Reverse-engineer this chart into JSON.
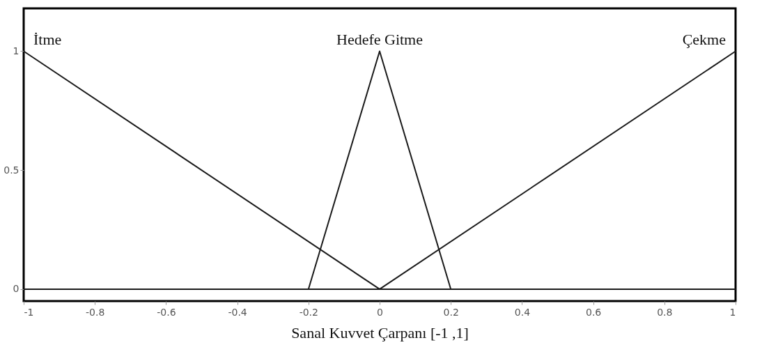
{
  "chart_data": {
    "type": "line",
    "xlabel": "Sanal Kuvvet Çarpanı [-1 ,1]",
    "series": [
      {
        "name": "İtme",
        "color": "#1a1a1a",
        "x": [
          -1,
          0,
          1
        ],
        "values": [
          1,
          0,
          0
        ]
      },
      {
        "name": "Hedefe Gitme",
        "color": "#1a1a1a",
        "x": [
          -1,
          -0.2,
          0,
          0.2,
          1
        ],
        "values": [
          0,
          0,
          1,
          0,
          0
        ]
      },
      {
        "name": "Çekme",
        "color": "#1a1a1a",
        "x": [
          -1,
          0,
          1
        ],
        "values": [
          0,
          0,
          1
        ]
      }
    ],
    "xlim": [
      -1,
      1
    ],
    "xticks": [
      -1,
      -0.8,
      -0.6,
      -0.4,
      -0.2,
      0,
      0.2,
      0.4,
      0.6,
      0.8,
      1
    ],
    "ylim": [
      -0.05,
      1.18
    ],
    "yticks": [
      0,
      0.5,
      1
    ],
    "grid": false,
    "legend": false,
    "marker": "none",
    "line_style": "solid"
  }
}
